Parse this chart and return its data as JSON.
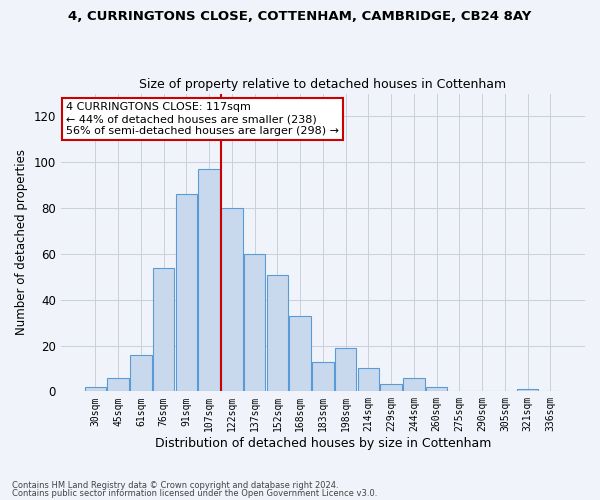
{
  "title1": "4, CURRINGTONS CLOSE, COTTENHAM, CAMBRIDGE, CB24 8AY",
  "title2": "Size of property relative to detached houses in Cottenham",
  "xlabel": "Distribution of detached houses by size in Cottenham",
  "ylabel": "Number of detached properties",
  "bar_labels": [
    "30sqm",
    "45sqm",
    "61sqm",
    "76sqm",
    "91sqm",
    "107sqm",
    "122sqm",
    "137sqm",
    "152sqm",
    "168sqm",
    "183sqm",
    "198sqm",
    "214sqm",
    "229sqm",
    "244sqm",
    "260sqm",
    "275sqm",
    "290sqm",
    "305sqm",
    "321sqm",
    "336sqm"
  ],
  "bar_heights": [
    2,
    6,
    16,
    54,
    86,
    97,
    80,
    60,
    51,
    33,
    13,
    19,
    10,
    3,
    6,
    2,
    0,
    0,
    0,
    1,
    0
  ],
  "bar_color": "#c8d9ed",
  "bar_edge_color": "#5b9bd5",
  "vline_x_idx": 6,
  "vline_color": "#cc0000",
  "annotation_text": "4 CURRINGTONS CLOSE: 117sqm\n← 44% of detached houses are smaller (238)\n56% of semi-detached houses are larger (298) →",
  "annotation_box_color": "#ffffff",
  "annotation_box_edge": "#cc0000",
  "ylim": [
    0,
    130
  ],
  "yticks": [
    0,
    20,
    40,
    60,
    80,
    100,
    120
  ],
  "footnote1": "Contains HM Land Registry data © Crown copyright and database right 2024.",
  "footnote2": "Contains public sector information licensed under the Open Government Licence v3.0.",
  "bg_color": "#f0f4fa",
  "grid_color": "#c8d0dc"
}
